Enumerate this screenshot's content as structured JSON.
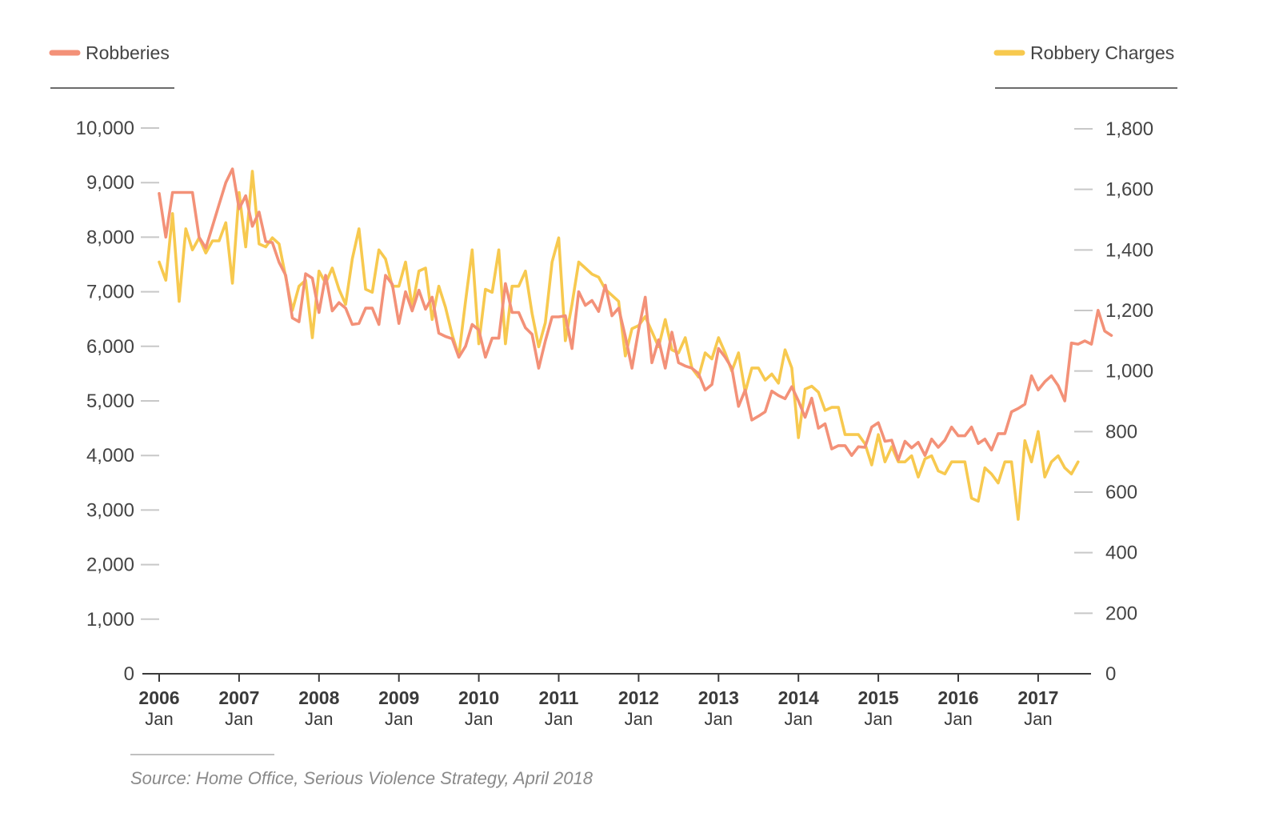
{
  "colors": {
    "robberies": "#f39178",
    "charges": "#f7c94f",
    "grid": "#c8c8c8",
    "axis": "#3a3a3a"
  },
  "source": "Source: Home Office, Serious Violence Strategy, April 2018",
  "chart_data": {
    "type": "line",
    "title": "",
    "x_start": 2006,
    "xlim": [
      2006,
      2017.67
    ],
    "x_tick_years": [
      "2006",
      "2007",
      "2008",
      "2009",
      "2010",
      "2011",
      "2012",
      "2013",
      "2014",
      "2015",
      "2016",
      "2017"
    ],
    "x_tick_month": "Jan",
    "y_left": {
      "lim": [
        0,
        10000
      ],
      "ticks": [
        0,
        1000,
        2000,
        3000,
        4000,
        5000,
        6000,
        7000,
        8000,
        9000,
        10000
      ],
      "tick_labels": [
        "0",
        "1,000",
        "2,000",
        "3,000",
        "4,000",
        "5,000",
        "6,000",
        "7,000",
        "8,000",
        "9,000",
        "10,000"
      ]
    },
    "y_right": {
      "lim": [
        0,
        1800
      ],
      "ticks": [
        0,
        200,
        400,
        600,
        800,
        1000,
        1200,
        1400,
        1600,
        1800
      ],
      "tick_labels": [
        "0",
        "200",
        "400",
        "600",
        "800",
        "1,000",
        "1,200",
        "1,400",
        "1,600",
        "1,800"
      ]
    },
    "series": [
      {
        "name": "Robberies",
        "axis": "left",
        "color": "#f39178",
        "points": [
          [
            0,
            8800
          ],
          [
            1,
            8000
          ],
          [
            2,
            8820
          ],
          [
            3,
            8820
          ],
          [
            4,
            8820
          ],
          [
            5,
            8820
          ],
          [
            6,
            8000
          ],
          [
            7,
            7800
          ],
          [
            8,
            8200
          ],
          [
            9,
            8600
          ],
          [
            10,
            9000
          ],
          [
            11,
            9250
          ],
          [
            12,
            8520
          ],
          [
            13,
            8760
          ],
          [
            14,
            8200
          ],
          [
            15,
            8460
          ],
          [
            16,
            7920
          ],
          [
            17,
            7900
          ],
          [
            18,
            7540
          ],
          [
            19,
            7300
          ],
          [
            20,
            6520
          ],
          [
            21,
            6450
          ],
          [
            22,
            7330
          ],
          [
            23,
            7250
          ],
          [
            24,
            6620
          ],
          [
            25,
            7300
          ],
          [
            26,
            6650
          ],
          [
            27,
            6800
          ],
          [
            28,
            6700
          ],
          [
            29,
            6400
          ],
          [
            30,
            6420
          ],
          [
            31,
            6700
          ],
          [
            32,
            6700
          ],
          [
            33,
            6400
          ],
          [
            34,
            7300
          ],
          [
            35,
            7140
          ],
          [
            36,
            6420
          ],
          [
            37,
            7000
          ],
          [
            38,
            6650
          ],
          [
            39,
            7030
          ],
          [
            40,
            6680
          ],
          [
            41,
            6900
          ],
          [
            42,
            6240
          ],
          [
            43,
            6180
          ],
          [
            44,
            6140
          ],
          [
            45,
            5800
          ],
          [
            46,
            6000
          ],
          [
            47,
            6400
          ],
          [
            48,
            6300
          ],
          [
            49,
            5800
          ],
          [
            50,
            6150
          ],
          [
            51,
            6150
          ],
          [
            52,
            7150
          ],
          [
            53,
            6620
          ],
          [
            54,
            6620
          ],
          [
            55,
            6340
          ],
          [
            56,
            6220
          ],
          [
            57,
            5600
          ],
          [
            58,
            6100
          ],
          [
            59,
            6540
          ],
          [
            60,
            6540
          ],
          [
            61,
            6560
          ],
          [
            62,
            5960
          ],
          [
            63,
            7000
          ],
          [
            64,
            6750
          ],
          [
            65,
            6840
          ],
          [
            66,
            6640
          ],
          [
            67,
            7120
          ],
          [
            68,
            6560
          ],
          [
            69,
            6700
          ],
          [
            70,
            6180
          ],
          [
            71,
            5600
          ],
          [
            72,
            6300
          ],
          [
            73,
            6900
          ],
          [
            74,
            5700
          ],
          [
            75,
            6120
          ],
          [
            76,
            5600
          ],
          [
            77,
            6260
          ],
          [
            78,
            5700
          ],
          [
            79,
            5640
          ],
          [
            80,
            5600
          ],
          [
            81,
            5500
          ],
          [
            82,
            5200
          ],
          [
            83,
            5300
          ],
          [
            84,
            5960
          ],
          [
            85,
            5800
          ],
          [
            86,
            5600
          ],
          [
            87,
            4900
          ],
          [
            88,
            5200
          ],
          [
            89,
            4650
          ],
          [
            90,
            4720
          ],
          [
            91,
            4800
          ],
          [
            92,
            5180
          ],
          [
            93,
            5100
          ],
          [
            94,
            5040
          ],
          [
            95,
            5260
          ],
          [
            96,
            5000
          ],
          [
            97,
            4700
          ],
          [
            98,
            5050
          ],
          [
            99,
            4500
          ],
          [
            100,
            4580
          ],
          [
            101,
            4120
          ],
          [
            102,
            4180
          ],
          [
            103,
            4180
          ],
          [
            104,
            4000
          ],
          [
            105,
            4160
          ],
          [
            106,
            4150
          ],
          [
            107,
            4520
          ],
          [
            108,
            4600
          ],
          [
            109,
            4260
          ],
          [
            110,
            4280
          ],
          [
            111,
            3920
          ],
          [
            112,
            4260
          ],
          [
            113,
            4140
          ],
          [
            114,
            4240
          ],
          [
            115,
            4000
          ],
          [
            116,
            4300
          ],
          [
            117,
            4150
          ],
          [
            118,
            4280
          ],
          [
            119,
            4520
          ],
          [
            120,
            4360
          ],
          [
            121,
            4360
          ],
          [
            122,
            4520
          ],
          [
            123,
            4220
          ],
          [
            124,
            4300
          ],
          [
            125,
            4100
          ],
          [
            126,
            4400
          ],
          [
            127,
            4400
          ],
          [
            128,
            4800
          ],
          [
            129,
            4860
          ],
          [
            130,
            4940
          ],
          [
            131,
            5460
          ],
          [
            132,
            5200
          ],
          [
            133,
            5350
          ],
          [
            134,
            5460
          ],
          [
            135,
            5280
          ],
          [
            136,
            5000
          ],
          [
            137,
            6060
          ],
          [
            138,
            6040
          ],
          [
            139,
            6100
          ],
          [
            140,
            6040
          ],
          [
            141,
            6660
          ],
          [
            142,
            6280
          ],
          [
            143,
            6200
          ]
        ]
      },
      {
        "name": "Robbery Charges",
        "axis": "right",
        "color": "#f7c94f",
        "points": [
          [
            0,
            1360
          ],
          [
            1,
            1300
          ],
          [
            2,
            1520
          ],
          [
            3,
            1230
          ],
          [
            4,
            1470
          ],
          [
            5,
            1400
          ],
          [
            6,
            1440
          ],
          [
            7,
            1390
          ],
          [
            8,
            1430
          ],
          [
            9,
            1430
          ],
          [
            10,
            1490
          ],
          [
            11,
            1290
          ],
          [
            12,
            1590
          ],
          [
            13,
            1410
          ],
          [
            14,
            1660
          ],
          [
            15,
            1420
          ],
          [
            16,
            1410
          ],
          [
            17,
            1440
          ],
          [
            18,
            1420
          ],
          [
            19,
            1310
          ],
          [
            20,
            1200
          ],
          [
            21,
            1280
          ],
          [
            22,
            1300
          ],
          [
            23,
            1110
          ],
          [
            24,
            1330
          ],
          [
            25,
            1290
          ],
          [
            26,
            1340
          ],
          [
            27,
            1270
          ],
          [
            28,
            1220
          ],
          [
            29,
            1370
          ],
          [
            30,
            1470
          ],
          [
            31,
            1270
          ],
          [
            32,
            1260
          ],
          [
            33,
            1400
          ],
          [
            34,
            1370
          ],
          [
            35,
            1280
          ],
          [
            36,
            1280
          ],
          [
            37,
            1360
          ],
          [
            38,
            1210
          ],
          [
            39,
            1330
          ],
          [
            40,
            1340
          ],
          [
            41,
            1170
          ],
          [
            42,
            1280
          ],
          [
            43,
            1210
          ],
          [
            44,
            1120
          ],
          [
            45,
            1050
          ],
          [
            46,
            1230
          ],
          [
            47,
            1400
          ],
          [
            48,
            1090
          ],
          [
            49,
            1270
          ],
          [
            50,
            1260
          ],
          [
            51,
            1400
          ],
          [
            52,
            1090
          ],
          [
            53,
            1280
          ],
          [
            54,
            1280
          ],
          [
            55,
            1330
          ],
          [
            56,
            1190
          ],
          [
            57,
            1080
          ],
          [
            58,
            1160
          ],
          [
            59,
            1360
          ],
          [
            60,
            1440
          ],
          [
            61,
            1100
          ],
          [
            62,
            1220
          ],
          [
            63,
            1360
          ],
          [
            64,
            1340
          ],
          [
            65,
            1320
          ],
          [
            66,
            1310
          ],
          [
            67,
            1270
          ],
          [
            68,
            1250
          ],
          [
            69,
            1230
          ],
          [
            70,
            1050
          ],
          [
            71,
            1140
          ],
          [
            72,
            1150
          ],
          [
            73,
            1180
          ],
          [
            74,
            1130
          ],
          [
            75,
            1080
          ],
          [
            76,
            1170
          ],
          [
            77,
            1070
          ],
          [
            78,
            1060
          ],
          [
            79,
            1110
          ],
          [
            80,
            1010
          ],
          [
            81,
            980
          ],
          [
            82,
            1060
          ],
          [
            83,
            1040
          ],
          [
            84,
            1110
          ],
          [
            85,
            1060
          ],
          [
            86,
            1000
          ],
          [
            87,
            1060
          ],
          [
            88,
            930
          ],
          [
            89,
            1010
          ],
          [
            90,
            1010
          ],
          [
            91,
            970
          ],
          [
            92,
            990
          ],
          [
            93,
            960
          ],
          [
            94,
            1070
          ],
          [
            95,
            1010
          ],
          [
            96,
            780
          ],
          [
            97,
            940
          ],
          [
            98,
            950
          ],
          [
            99,
            930
          ],
          [
            100,
            870
          ],
          [
            101,
            880
          ],
          [
            102,
            880
          ],
          [
            103,
            790
          ],
          [
            104,
            790
          ],
          [
            105,
            790
          ],
          [
            106,
            760
          ],
          [
            107,
            690
          ],
          [
            108,
            790
          ],
          [
            109,
            700
          ],
          [
            110,
            750
          ],
          [
            111,
            700
          ],
          [
            112,
            700
          ],
          [
            113,
            720
          ],
          [
            114,
            650
          ],
          [
            115,
            710
          ],
          [
            116,
            720
          ],
          [
            117,
            670
          ],
          [
            118,
            660
          ],
          [
            119,
            700
          ],
          [
            120,
            700
          ],
          [
            121,
            700
          ],
          [
            122,
            580
          ],
          [
            123,
            570
          ],
          [
            124,
            680
          ],
          [
            125,
            660
          ],
          [
            126,
            630
          ],
          [
            127,
            700
          ],
          [
            128,
            700
          ],
          [
            129,
            510
          ],
          [
            130,
            770
          ],
          [
            131,
            700
          ],
          [
            132,
            800
          ],
          [
            133,
            650
          ],
          [
            134,
            700
          ],
          [
            135,
            720
          ],
          [
            136,
            680
          ],
          [
            137,
            660
          ],
          [
            138,
            700
          ]
        ]
      }
    ]
  },
  "legend": {
    "left_label": "Robberies",
    "right_label": "Robbery Charges"
  }
}
